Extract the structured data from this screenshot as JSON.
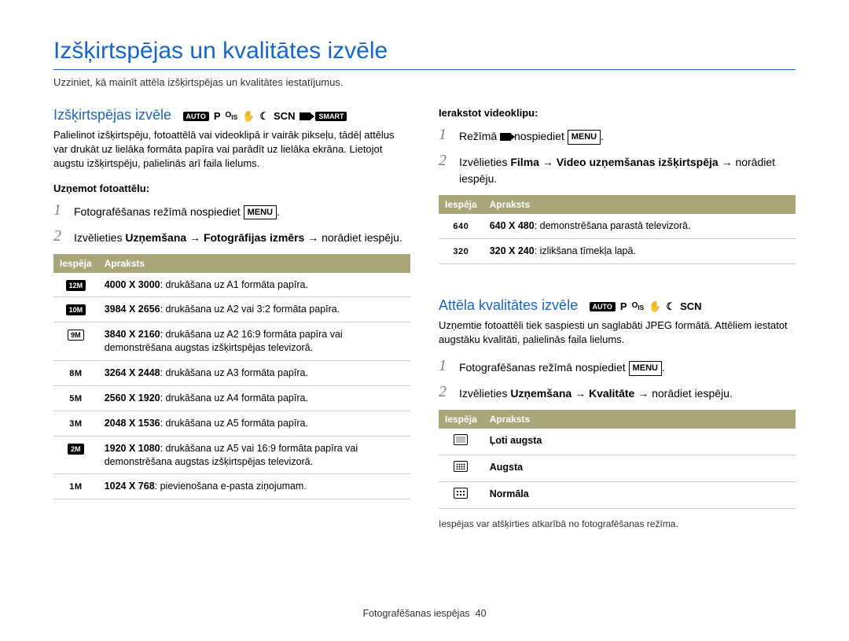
{
  "page": {
    "title": "Izšķirtspējas un kvalitātes izvēle",
    "subtitle": "Uzziniet, kā mainīt attēla izšķirtspējas un kvalitātes iestatījumus.",
    "footer_label": "Fotografēšanas iespējas",
    "page_number": "40"
  },
  "section1": {
    "heading": "Izšķirtspējas izvēle",
    "modes": [
      "AUTO",
      "P",
      "OIS",
      "hand",
      "moon",
      "SCN",
      "video",
      "SMART"
    ],
    "body": "Palielinot izšķirtspēju, fotoattēlā vai videoklipā ir vairāk pikseļu, tādēļ attēlus var drukāt uz lielāka formāta papīra vai parādīt uz lielāka ekrāna. Lietojot augstu izšķirtspēju, palielinās arī faila lielums.",
    "sub_a": "Uzņemot fotoattēlu:",
    "step1": "Fotografēšanas režīmā nospiediet ",
    "step2_pre": "Izvēlieties ",
    "step2_b1": "Uzņemšana",
    "step2_b2": "Fotogrāfijas izmērs",
    "step2_post": " norādiet iespēju.",
    "menu_label": "MENU",
    "table": {
      "col1": "Iespēja",
      "col2": "Apraksts",
      "rows": [
        {
          "icon": "12M",
          "filled": true,
          "text": "4000 X 3000: drukāšana uz A1 formāta papīra."
        },
        {
          "icon": "10M",
          "filled": true,
          "text": "3984 X 2656: drukāšana uz A2 vai 3:2 formāta papīra."
        },
        {
          "icon": "9M",
          "filled": false,
          "text": "3840 X 2160: drukāšana uz A2 16:9 formāta papīra vai demonstrēšana augstas izšķirtspējas televizorā."
        },
        {
          "icon": "8M",
          "filled": false,
          "plain": true,
          "text": "3264 X 2448: drukāšana uz A3 formāta papīra."
        },
        {
          "icon": "5M",
          "filled": false,
          "plain": true,
          "text": "2560 X 1920: drukāšana uz A4 formāta papīra."
        },
        {
          "icon": "3M",
          "filled": false,
          "plain": true,
          "text": "2048 X 1536: drukāšana uz A5 formāta papīra."
        },
        {
          "icon": "2M",
          "filled": true,
          "text": "1920 X 1080: drukāšana uz A5 vai 16:9 formāta papīra vai demonstrēšana augstas izšķirtspējas televizorā."
        },
        {
          "icon": "1M",
          "filled": false,
          "plain": true,
          "text": "1024 X 768: pievienošana e-pasta ziņojumam."
        }
      ]
    }
  },
  "section_video": {
    "sub": "Ierakstot videoklipu:",
    "step1_pre": "Režīmā ",
    "step1_post": " nospiediet ",
    "step2_pre": "Izvēlieties ",
    "step2_b1": "Filma",
    "step2_b2": "Video uzņemšanas izšķirtspēja",
    "step2_post": " norādiet iespēju.",
    "menu_label": "MENU",
    "table": {
      "col1": "Iespēja",
      "col2": "Apraksts",
      "rows": [
        {
          "label": "640",
          "text": "640 X 480: demonstrēšana parastā televizorā."
        },
        {
          "label": "320",
          "text": "320 X 240: izlikšana tīmekļa lapā."
        }
      ]
    }
  },
  "section2": {
    "heading": "Attēla kvalitātes izvēle",
    "modes": [
      "AUTO",
      "P",
      "OIS",
      "hand",
      "moon",
      "SCN"
    ],
    "body": "Uzņemtie fotoattēli tiek saspiesti un saglabāti JPEG formātā. Attēliem iestatot augstāku kvalitāti, palielinās faila lielums.",
    "step1": "Fotografēšanas režīmā nospiediet ",
    "step2_pre": "Izvēlieties ",
    "step2_b1": "Uzņemšana",
    "step2_b2": "Kvalitāte",
    "step2_post": " norādiet iespēju.",
    "menu_label": "MENU",
    "table": {
      "col1": "Iespēja",
      "col2": "Apraksts",
      "rows": [
        {
          "q": "sf",
          "label": "Ļoti augsta"
        },
        {
          "q": "f",
          "label": "Augsta"
        },
        {
          "q": "n",
          "label": "Normāla"
        }
      ]
    },
    "footnote": "Iespējas var atšķirties atkarībā no fotografēšanas režīma."
  }
}
